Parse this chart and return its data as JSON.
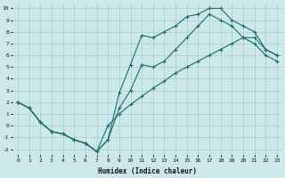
{
  "xlabel": "Humidex (Indice chaleur)",
  "bg_color": "#cce8e8",
  "grid_color": "#aacccc",
  "line_color": "#1a6e6e",
  "xlim": [
    -0.5,
    23.5
  ],
  "ylim": [
    -2.5,
    10.5
  ],
  "xticks": [
    0,
    1,
    2,
    3,
    4,
    5,
    6,
    7,
    8,
    9,
    10,
    11,
    12,
    13,
    14,
    15,
    16,
    17,
    18,
    19,
    20,
    21,
    22,
    23
  ],
  "yticks": [
    -2,
    -1,
    0,
    1,
    2,
    3,
    4,
    5,
    6,
    7,
    8,
    9,
    10
  ],
  "curve_upper_x": [
    0,
    1,
    2,
    3,
    4,
    5,
    6,
    7,
    8,
    9,
    10,
    11,
    12,
    13,
    14,
    15,
    16,
    17,
    18,
    19,
    20,
    21,
    22,
    23
  ],
  "curve_upper_y": [
    2.0,
    1.5,
    0.3,
    -0.5,
    -0.7,
    -1.2,
    -1.5,
    -2.2,
    -1.2,
    2.8,
    5.2,
    7.7,
    7.5,
    8.0,
    8.5,
    9.3,
    9.5,
    10.0,
    10.0,
    9.0,
    8.5,
    8.0,
    6.5,
    6.0
  ],
  "curve_mid_x": [
    0,
    1,
    2,
    3,
    4,
    5,
    6,
    7,
    8,
    9,
    10,
    11,
    12,
    13,
    14,
    15,
    16,
    17,
    18,
    19,
    20,
    21,
    22,
    23
  ],
  "curve_mid_y": [
    2.0,
    1.5,
    0.3,
    -0.5,
    -0.7,
    -1.2,
    -1.5,
    -2.2,
    -1.2,
    1.5,
    3.0,
    5.2,
    5.0,
    5.5,
    6.5,
    7.5,
    8.5,
    9.5,
    9.0,
    8.5,
    7.5,
    7.0,
    6.0,
    5.5
  ],
  "curve_lower_x": [
    0,
    1,
    2,
    3,
    4,
    5,
    6,
    7,
    8,
    9,
    10,
    11,
    12,
    13,
    14,
    15,
    16,
    17,
    18,
    19,
    20,
    21,
    22,
    23
  ],
  "curve_lower_y": [
    2.0,
    1.5,
    0.3,
    -0.5,
    -0.7,
    -1.2,
    -1.5,
    -2.2,
    0.0,
    1.0,
    1.8,
    2.5,
    3.2,
    3.8,
    4.5,
    5.0,
    5.5,
    6.0,
    6.5,
    7.0,
    7.5,
    7.5,
    6.5,
    6.0
  ]
}
